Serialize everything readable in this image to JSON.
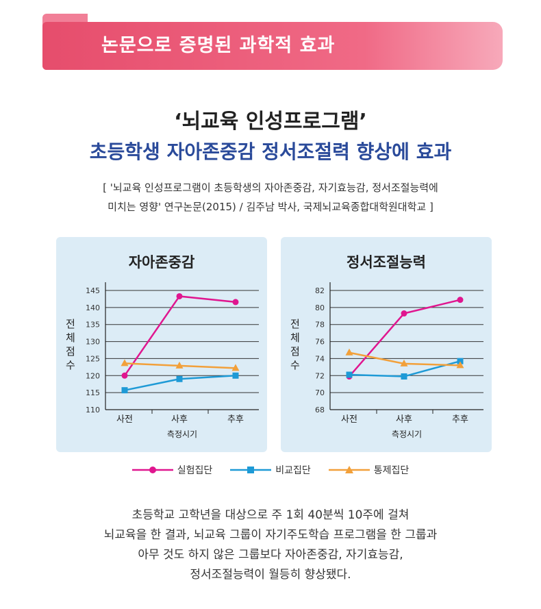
{
  "banner": {
    "title": "논문으로 증명된 과학적 효과"
  },
  "headline": "‘뇌교육 인성프로그램’",
  "subheadline": "초등학생 자아존중감 정서조절력 향상에 효과",
  "citation": {
    "line1": "[ '뇌교육 인성프로그램이 초등학생의 자아존중감, 자기효능감, 정서조절능력에",
    "line2": "미치는 영향' 연구논문(2015) / 김주남 박사, 국제뇌교육종합대학원대학교 ]"
  },
  "chart_data": [
    {
      "type": "line",
      "title": "자아존중감",
      "xlabel": "측정시기",
      "ylabel": "전체점수",
      "categories": [
        "사전",
        "사후",
        "추후"
      ],
      "ylim": [
        110,
        145
      ],
      "yticks": [
        110,
        115,
        120,
        125,
        130,
        135,
        140,
        145
      ],
      "grid": true,
      "legend": "bottom",
      "series": [
        {
          "name": "실험집단",
          "values": [
            120,
            143.3,
            141.6
          ],
          "color": "#e0168f",
          "marker": "circle"
        },
        {
          "name": "비교집단",
          "values": [
            115.7,
            119,
            120
          ],
          "color": "#1e9ad6",
          "marker": "square"
        },
        {
          "name": "통제집단",
          "values": [
            123.6,
            122.9,
            122.2
          ],
          "color": "#f2a03a",
          "marker": "triangle"
        }
      ]
    },
    {
      "type": "line",
      "title": "정서조절능력",
      "xlabel": "측정시기",
      "ylabel": "전체점수",
      "categories": [
        "사전",
        "사후",
        "추후"
      ],
      "ylim": [
        68,
        82
      ],
      "yticks": [
        68,
        70,
        72,
        74,
        76,
        78,
        80,
        82
      ],
      "grid": true,
      "legend": "bottom",
      "series": [
        {
          "name": "실험집단",
          "values": [
            71.9,
            79.3,
            80.9
          ],
          "color": "#e0168f",
          "marker": "circle"
        },
        {
          "name": "비교집단",
          "values": [
            72.1,
            71.9,
            73.7
          ],
          "color": "#1e9ad6",
          "marker": "square"
        },
        {
          "name": "통제집단",
          "values": [
            74.7,
            73.4,
            73.2
          ],
          "color": "#f2a03a",
          "marker": "triangle"
        }
      ]
    }
  ],
  "legend": [
    {
      "label": "실험집단",
      "color": "#e0168f",
      "marker": "circle"
    },
    {
      "label": "비교집단",
      "color": "#1e9ad6",
      "marker": "square"
    },
    {
      "label": "통제집단",
      "color": "#f2a03a",
      "marker": "triangle"
    }
  ],
  "body": {
    "line1": "초등학교 고학년을 대상으로 주 1회 40분씩 10주에 걸쳐",
    "line2": "뇌교육을 한 결과, 뇌교육 그룹이 자기주도학습 프로그램을 한 그룹과",
    "line3": "아무 것도 하지 않은 그룹보다 자아존중감, 자기효능감,",
    "line4": "정서조절능력이 월등히 향상됐다."
  }
}
